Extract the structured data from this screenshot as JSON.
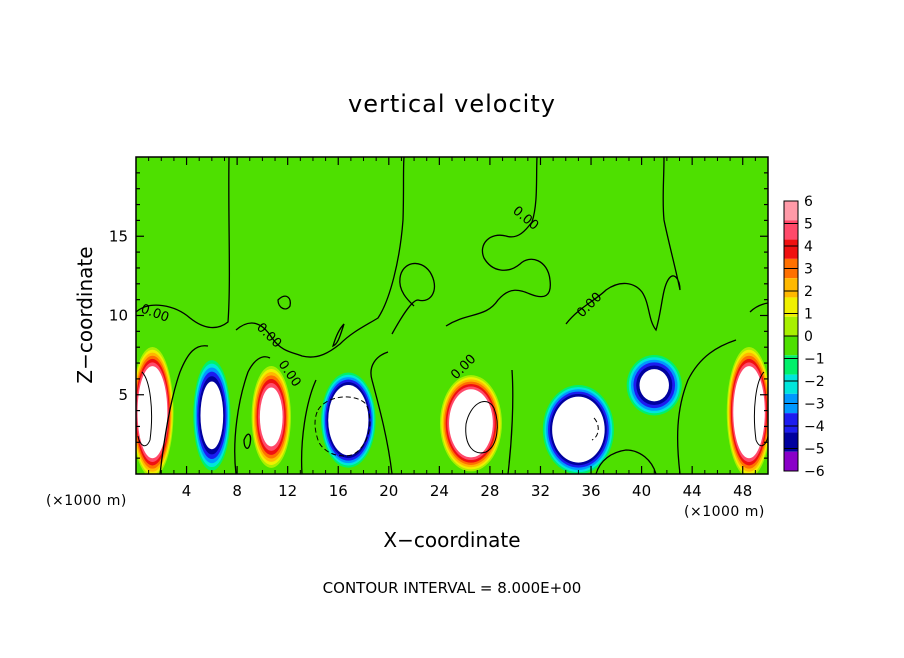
{
  "chart_data": {
    "type": "heatmap",
    "title": "vertical velocity",
    "xlabel": "X−coordinate",
    "ylabel": "Z−coordinate",
    "x_unit_left": "(×1000 m)",
    "x_unit_right": "(×1000 m)",
    "xlim": [
      0,
      50
    ],
    "ylim": [
      0,
      20
    ],
    "x_ticks": [
      4,
      8,
      12,
      16,
      20,
      24,
      28,
      32,
      36,
      40,
      44,
      48
    ],
    "y_ticks": [
      5,
      10,
      15
    ],
    "footer": "CONTOUR INTERVAL = 8.000E+00",
    "contour_label": "0.00",
    "colorbar": {
      "levels": [
        6,
        5,
        4,
        3,
        2,
        1,
        0,
        -1,
        -2,
        -3,
        -4,
        -5,
        -6
      ],
      "labels": [
        "6",
        "5",
        "4",
        "3",
        "2",
        "1",
        "0",
        "−1",
        "−2",
        "−3",
        "−4",
        "−5",
        "−6"
      ],
      "colors": [
        "#ff9aa8",
        "#ff4a6a",
        "#f01010",
        "#ff7000",
        "#ffb800",
        "#f0f000",
        "#a8f000",
        "#4ee000",
        "#00f06a",
        "#00e6dc",
        "#0098ff",
        "#1c1cf0",
        "#00009e",
        "#8a00c8"
      ]
    },
    "features": [
      {
        "kind": "updraft",
        "x": 1.3,
        "z": 3.9,
        "rx": 1.7,
        "rz": 4.2,
        "peak": 12
      },
      {
        "kind": "downdraft",
        "x": 6.0,
        "z": 3.7,
        "rx": 1.6,
        "rz": 3.8,
        "peak": -9
      },
      {
        "kind": "updraft",
        "x": 10.7,
        "z": 3.6,
        "rx": 1.6,
        "rz": 3.3,
        "peak": 9
      },
      {
        "kind": "downdraft",
        "x": 16.8,
        "z": 3.4,
        "rx": 2.3,
        "rz": 3.2,
        "peak": -12
      },
      {
        "kind": "updraft",
        "x": 26.5,
        "z": 3.2,
        "rx": 2.5,
        "rz": 3.1,
        "peak": 12
      },
      {
        "kind": "downdraft",
        "x": 35.0,
        "z": 2.8,
        "rx": 3.0,
        "rz": 3.0,
        "peak": -12
      },
      {
        "kind": "downdraft",
        "x": 41.0,
        "z": 5.6,
        "rx": 2.4,
        "rz": 2.1,
        "peak": -8
      },
      {
        "kind": "updraft",
        "x": 48.5,
        "z": 3.9,
        "rx": 1.8,
        "rz": 4.2,
        "peak": 12
      }
    ]
  }
}
